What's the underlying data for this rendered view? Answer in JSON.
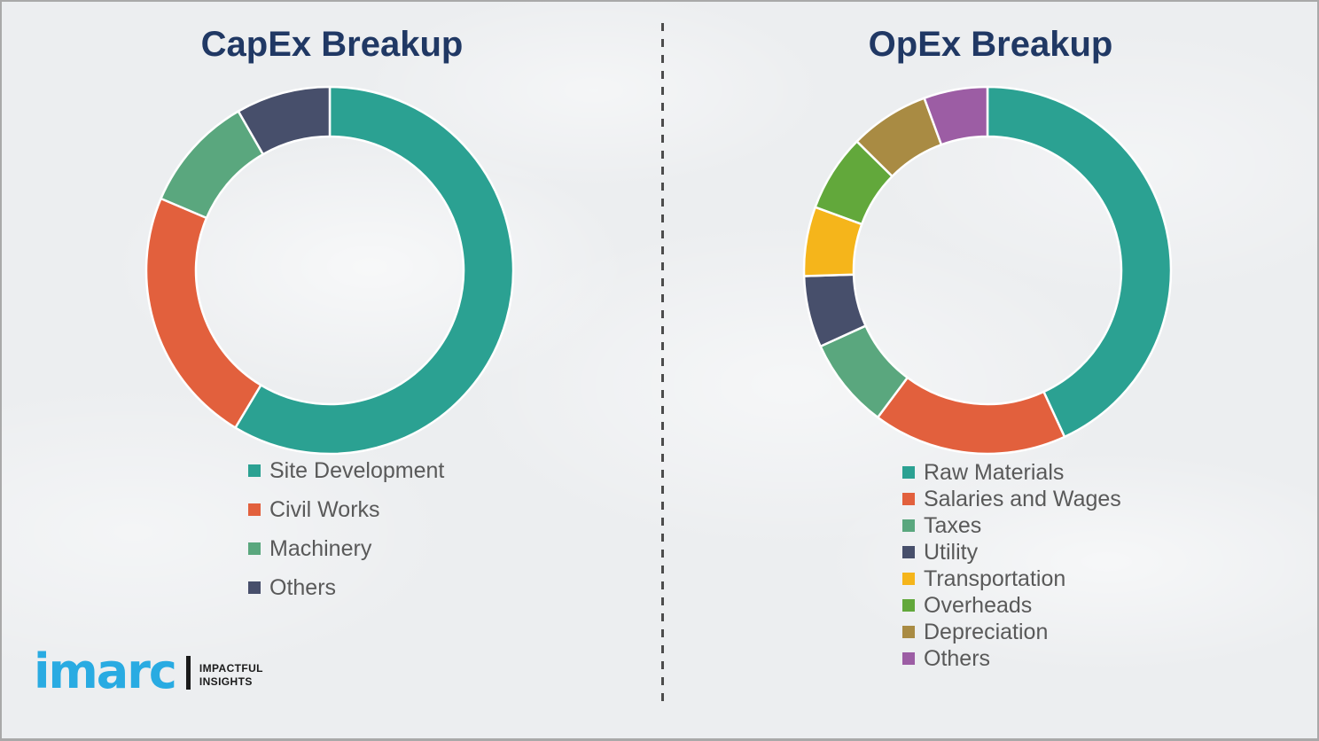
{
  "page": {
    "background_color": "#eceef0",
    "border_color": "#a9a9a9",
    "divider_color": "#4c4c4c"
  },
  "chart_data": [
    {
      "type": "pie",
      "variant": "donut",
      "title": "CapEx Breakup",
      "title_color": "#203864",
      "categories": [
        "Site Development",
        "Civil Works",
        "Machinery",
        "Others"
      ],
      "values": [
        58.6,
        22.8,
        10.3,
        8.3
      ],
      "unit": "percent (estimated from arc angles; no data labels shown)",
      "colors": [
        "#2BA192",
        "#E2603D",
        "#5AA77E",
        "#474F6B"
      ],
      "start_angle_deg": 0,
      "direction": "clockwise",
      "inner_radius_ratio": 0.73,
      "segment_gap_color": "#ffffff",
      "legend_position": "below-left",
      "legend_text_color": "#595959"
    },
    {
      "type": "pie",
      "variant": "donut",
      "title": "OpEx Breakup",
      "title_color": "#203864",
      "categories": [
        "Raw Materials",
        "Salaries and Wages",
        "Taxes",
        "Utility",
        "Transportation",
        "Overheads",
        "Depreciation",
        "Others"
      ],
      "values": [
        43.1,
        17.1,
        8.0,
        6.3,
        6.1,
        6.8,
        7.0,
        5.6
      ],
      "unit": "percent (estimated from arc angles; no data labels shown)",
      "colors": [
        "#2BA192",
        "#E2603D",
        "#5AA77E",
        "#474F6B",
        "#F5B51B",
        "#62A83B",
        "#A98B43",
        "#9C5DA4"
      ],
      "start_angle_deg": 0,
      "direction": "clockwise",
      "inner_radius_ratio": 0.73,
      "segment_gap_color": "#ffffff",
      "legend_position": "below-left",
      "legend_text_color": "#595959"
    }
  ],
  "branding": {
    "logo_text": "imarc",
    "logo_color": "#29ABE2",
    "tagline_line1": "IMPACTFUL",
    "tagline_line2": "INSIGHTS",
    "tagline_color": "#1a1a1a"
  }
}
